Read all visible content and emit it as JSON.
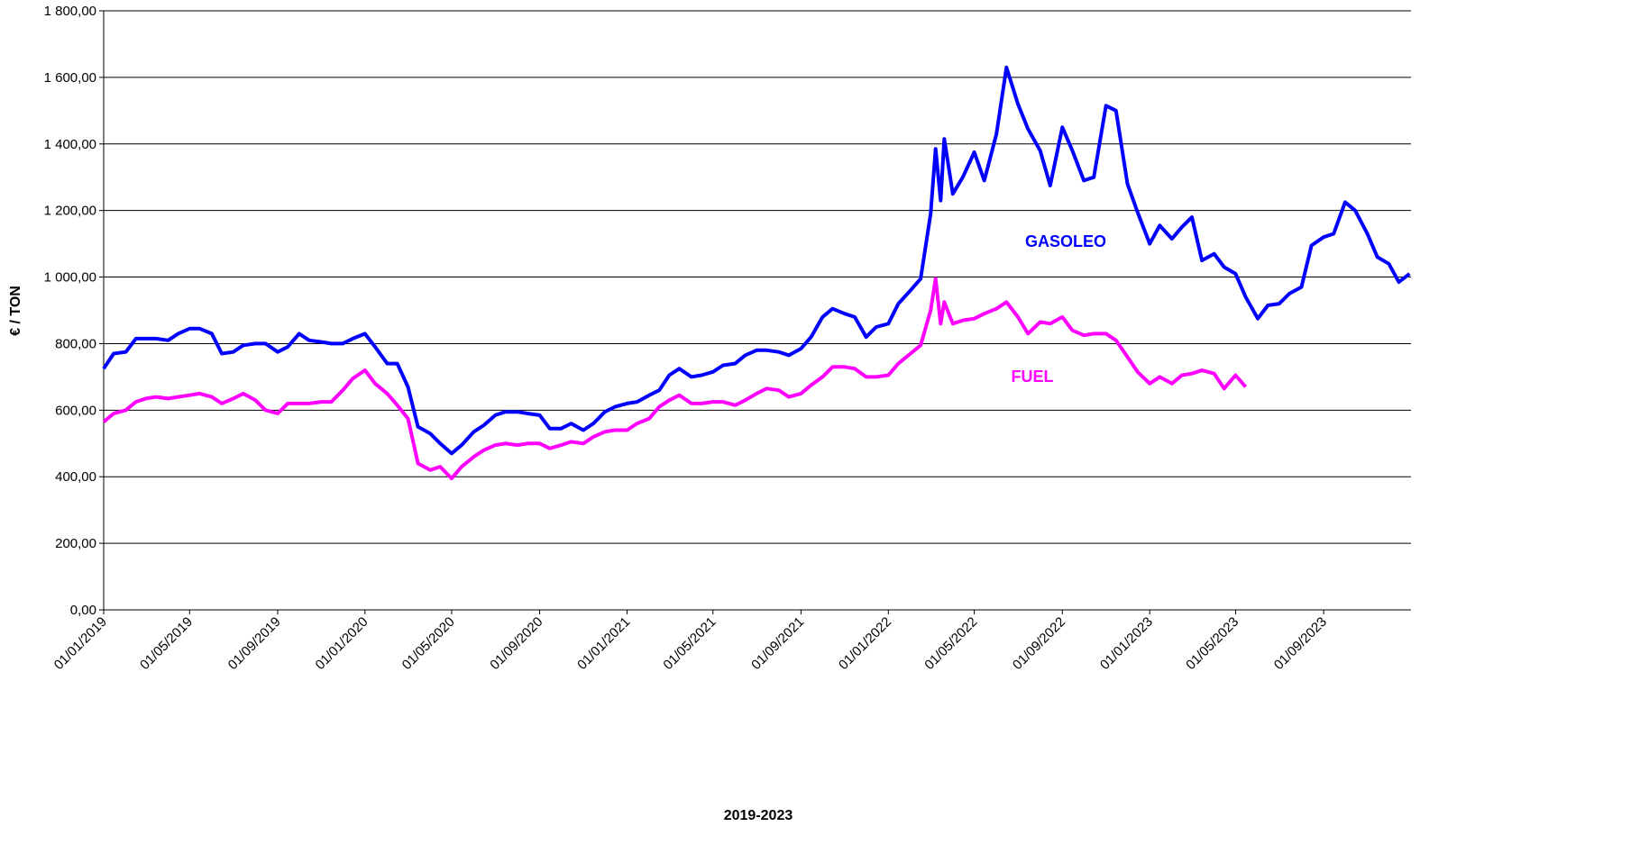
{
  "chart_data": {
    "type": "line",
    "x_label": "2019-2023",
    "y_label": "€ / TON",
    "xlim": [
      "01/01/2019",
      "01/01/2024"
    ],
    "xticks": [
      "01/01/2019",
      "01/05/2019",
      "01/09/2019",
      "01/01/2020",
      "01/05/2020",
      "01/09/2020",
      "01/01/2021",
      "01/05/2021",
      "01/09/2021",
      "01/01/2022",
      "01/05/2022",
      "01/09/2022",
      "01/01/2023",
      "01/05/2023",
      "01/09/2023"
    ],
    "ylim": [
      0,
      1800
    ],
    "yticks": [
      {
        "value": 0,
        "label": "0,00"
      },
      {
        "value": 200,
        "label": "200,00"
      },
      {
        "value": 400,
        "label": "400,00"
      },
      {
        "value": 600,
        "label": "600,00"
      },
      {
        "value": 800,
        "label": "800,00"
      },
      {
        "value": 1000,
        "label": "1 000,00"
      },
      {
        "value": 1200,
        "label": "1 200,00"
      },
      {
        "value": 1400,
        "label": "1 400,00"
      },
      {
        "value": 1600,
        "label": "1 600,00"
      },
      {
        "value": 1800,
        "label": "1 800,00"
      }
    ],
    "grid": true,
    "x": [
      "01/01/2019",
      "15/01/2019",
      "01/02/2019",
      "15/02/2019",
      "01/03/2019",
      "15/03/2019",
      "01/04/2019",
      "15/04/2019",
      "01/05/2019",
      "15/05/2019",
      "01/06/2019",
      "15/06/2019",
      "01/07/2019",
      "15/07/2019",
      "01/08/2019",
      "15/08/2019",
      "01/09/2019",
      "15/09/2019",
      "01/10/2019",
      "15/10/2019",
      "01/11/2019",
      "15/11/2019",
      "01/12/2019",
      "15/12/2019",
      "01/01/2020",
      "15/01/2020",
      "01/02/2020",
      "15/02/2020",
      "01/03/2020",
      "15/03/2020",
      "01/04/2020",
      "15/04/2020",
      "01/05/2020",
      "15/05/2020",
      "01/06/2020",
      "15/06/2020",
      "01/07/2020",
      "15/07/2020",
      "01/08/2020",
      "15/08/2020",
      "01/09/2020",
      "15/09/2020",
      "01/10/2020",
      "15/10/2020",
      "01/11/2020",
      "15/11/2020",
      "01/12/2020",
      "15/12/2020",
      "01/01/2021",
      "15/01/2021",
      "01/02/2021",
      "15/02/2021",
      "01/03/2021",
      "15/03/2021",
      "01/04/2021",
      "15/04/2021",
      "01/05/2021",
      "15/05/2021",
      "01/06/2021",
      "15/06/2021",
      "01/07/2021",
      "15/07/2021",
      "01/08/2021",
      "15/08/2021",
      "01/09/2021",
      "15/09/2021",
      "01/10/2021",
      "15/10/2021",
      "01/11/2021",
      "15/11/2021",
      "01/12/2021",
      "15/12/2021",
      "01/01/2022",
      "15/01/2022",
      "01/02/2022",
      "15/02/2022",
      "01/03/2022",
      "08/03/2022",
      "15/03/2022",
      "20/03/2022",
      "01/04/2022",
      "15/04/2022",
      "01/05/2022",
      "15/05/2022",
      "01/06/2022",
      "15/06/2022",
      "01/07/2022",
      "15/07/2022",
      "01/08/2022",
      "15/08/2022",
      "01/09/2022",
      "15/09/2022",
      "01/10/2022",
      "15/10/2022",
      "01/11/2022",
      "15/11/2022",
      "01/12/2022",
      "15/12/2022",
      "01/01/2023",
      "15/01/2023",
      "01/02/2023",
      "15/02/2023",
      "01/03/2023",
      "15/03/2023",
      "01/04/2023",
      "15/04/2023",
      "01/05/2023",
      "15/05/2023",
      "01/06/2023",
      "15/06/2023",
      "01/07/2023",
      "15/07/2023",
      "01/08/2023",
      "15/08/2023",
      "01/09/2023",
      "15/09/2023",
      "01/10/2023",
      "15/10/2023",
      "01/11/2023",
      "15/11/2023",
      "01/12/2023",
      "15/12/2023",
      "30/12/2023"
    ],
    "series": [
      {
        "name": "GASOLEO",
        "color": "#0000ff",
        "values": [
          725,
          770,
          775,
          815,
          815,
          815,
          810,
          830,
          845,
          845,
          830,
          770,
          775,
          795,
          800,
          800,
          775,
          790,
          830,
          810,
          805,
          800,
          800,
          815,
          830,
          790,
          740,
          740,
          670,
          550,
          530,
          500,
          470,
          495,
          535,
          555,
          585,
          595,
          595,
          590,
          585,
          545,
          545,
          560,
          540,
          560,
          595,
          610,
          620,
          625,
          645,
          660,
          705,
          725,
          700,
          705,
          715,
          735,
          740,
          765,
          780,
          780,
          775,
          765,
          785,
          820,
          880,
          905,
          890,
          880,
          820,
          850,
          860,
          920,
          960,
          995,
          1190,
          1385,
          1230,
          1415,
          1250,
          1300,
          1375,
          1290,
          1430,
          1630,
          1520,
          1445,
          1380,
          1275,
          1450,
          1380,
          1290,
          1300,
          1515,
          1500,
          1280,
          1195,
          1100,
          1155,
          1115,
          1150,
          1180,
          1050,
          1070,
          1030,
          1010,
          940,
          875,
          915,
          920,
          950,
          970,
          1095,
          1120,
          1130,
          1225,
          1200,
          1130,
          1060,
          1040,
          985,
          1010
        ]
      },
      {
        "name": "FUEL",
        "color": "#ff00ff",
        "values": [
          565,
          590,
          600,
          625,
          635,
          640,
          635,
          640,
          645,
          650,
          640,
          620,
          635,
          650,
          630,
          600,
          590,
          620,
          620,
          620,
          625,
          625,
          660,
          695,
          720,
          680,
          650,
          615,
          575,
          440,
          420,
          430,
          395,
          430,
          460,
          480,
          495,
          500,
          495,
          500,
          500,
          485,
          495,
          505,
          500,
          520,
          535,
          540,
          540,
          560,
          575,
          610,
          630,
          645,
          620,
          620,
          625,
          625,
          615,
          630,
          650,
          665,
          660,
          640,
          650,
          675,
          700,
          730,
          730,
          725,
          700,
          700,
          705,
          740,
          770,
          795,
          900,
          995,
          860,
          925,
          860,
          870,
          875,
          890,
          905,
          925,
          880,
          830,
          865,
          860,
          880,
          840,
          825,
          830,
          830,
          810,
          760,
          715,
          680,
          700,
          680,
          705,
          710,
          720,
          710,
          665,
          705,
          670,
          null,
          null,
          null,
          null,
          null,
          null,
          null,
          null,
          null,
          null,
          null,
          null,
          null,
          null,
          null
        ]
      }
    ]
  }
}
